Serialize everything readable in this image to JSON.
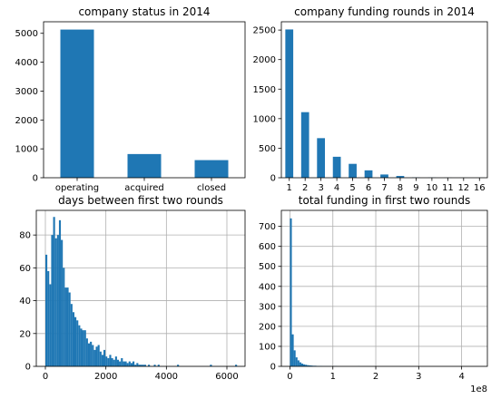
{
  "chart_data": [
    {
      "type": "bar",
      "title": "company status in 2014",
      "xlabel": "",
      "ylabel": "",
      "categories": [
        "operating",
        "acquired",
        "closed"
      ],
      "values": [
        5130,
        820,
        610
      ],
      "ylim": [
        0,
        5400
      ],
      "yticks": [
        0,
        1000,
        2000,
        3000,
        4000,
        5000
      ],
      "grid": false,
      "color": "#1f77b4"
    },
    {
      "type": "bar",
      "title": "company funding rounds in 2014",
      "xlabel": "",
      "ylabel": "",
      "categories": [
        "1",
        "2",
        "3",
        "4",
        "5",
        "6",
        "7",
        "8",
        "9",
        "10",
        "11",
        "12",
        "16"
      ],
      "values": [
        2510,
        1110,
        670,
        355,
        235,
        125,
        55,
        30,
        5,
        3,
        2,
        1,
        1
      ],
      "ylim": [
        0,
        2640
      ],
      "yticks": [
        0,
        500,
        1000,
        1500,
        2000,
        2500
      ],
      "grid": false,
      "color": "#1f77b4"
    },
    {
      "type": "bar",
      "title": "days between first two rounds",
      "xlabel": "",
      "ylabel": "",
      "histogram": true,
      "bin_start": 0,
      "bin_width": 64,
      "values": [
        68,
        58,
        50,
        80,
        91,
        78,
        80,
        89,
        77,
        60,
        48,
        48,
        45,
        38,
        33,
        30,
        28,
        25,
        23,
        22,
        22,
        17,
        14,
        15,
        13,
        10,
        12,
        13,
        9,
        7,
        10,
        6,
        5,
        7,
        5,
        4,
        6,
        4,
        3,
        5,
        3,
        3,
        2,
        3,
        2,
        3,
        1,
        2,
        1,
        1,
        1,
        1,
        0,
        1,
        0,
        0,
        1,
        0,
        1,
        0,
        0,
        0,
        0,
        0,
        0,
        0,
        0,
        0,
        1,
        0,
        0,
        0,
        0,
        0,
        0,
        0,
        0,
        0,
        0,
        0,
        0,
        0,
        0,
        0,
        0,
        1,
        0,
        0,
        0,
        0,
        0,
        0,
        0,
        0,
        0,
        0,
        0,
        0,
        1
      ],
      "xlim": [
        -300,
        6600
      ],
      "ylim": [
        0,
        95
      ],
      "xticks": [
        0,
        2000,
        4000,
        6000
      ],
      "yticks": [
        0,
        20,
        40,
        60,
        80
      ],
      "grid": true,
      "color": "#1f77b4"
    },
    {
      "type": "bar",
      "title": "total funding in first two rounds",
      "xlabel": "",
      "ylabel": "",
      "histogram": true,
      "offset_label": "1e8",
      "bin_start": 0,
      "bin_width": 0.044,
      "values": [
        740,
        160,
        80,
        45,
        30,
        20,
        14,
        10,
        8,
        6,
        5,
        4,
        3,
        3,
        2,
        2,
        2,
        1,
        1,
        1,
        1,
        1,
        0,
        1,
        1,
        0,
        0,
        0,
        0,
        0,
        0,
        0,
        0,
        0,
        0,
        0,
        1
      ],
      "xlim": [
        -0.2,
        4.6
      ],
      "ylim": [
        0,
        780
      ],
      "xticks": [
        0,
        1,
        2,
        3,
        4
      ],
      "yticks": [
        0,
        100,
        200,
        300,
        400,
        500,
        600,
        700
      ],
      "grid": true,
      "color": "#1f77b4"
    }
  ]
}
